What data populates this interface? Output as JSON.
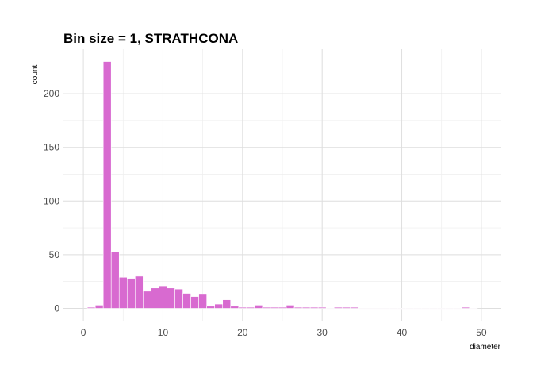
{
  "chart_data": {
    "type": "bar",
    "title": "Bin size = 1, STRATHCONA",
    "xlabel": "diameter",
    "ylabel": "count",
    "bin_width": 1,
    "x": [
      1,
      2,
      3,
      4,
      5,
      6,
      7,
      8,
      9,
      10,
      11,
      12,
      13,
      14,
      15,
      16,
      17,
      18,
      19,
      20,
      21,
      22,
      23,
      24,
      25,
      26,
      27,
      28,
      29,
      30,
      31,
      32,
      33,
      34,
      35,
      36,
      37,
      38,
      39,
      40,
      41,
      42,
      43,
      44,
      45,
      46,
      47,
      48,
      49
    ],
    "values": [
      1,
      3,
      230,
      53,
      29,
      28,
      30,
      16,
      19,
      21,
      19,
      18,
      14,
      11,
      13,
      2,
      4,
      8,
      2,
      1,
      1,
      3,
      1,
      1,
      1,
      3,
      1,
      1,
      1,
      1,
      0,
      1,
      1,
      1,
      0,
      0,
      0,
      0,
      0,
      0,
      0,
      0,
      0,
      0,
      0,
      0,
      0,
      1,
      0
    ],
    "xlim": [
      -2.5,
      52.5
    ],
    "ylim": [
      -11.5,
      241.5
    ],
    "xticks": [
      0,
      10,
      20,
      30,
      40,
      50
    ],
    "yticks": [
      0,
      50,
      100,
      150,
      200
    ],
    "grid": true,
    "fill_color": "#d86ad0",
    "edge_color": "#ffffff"
  }
}
